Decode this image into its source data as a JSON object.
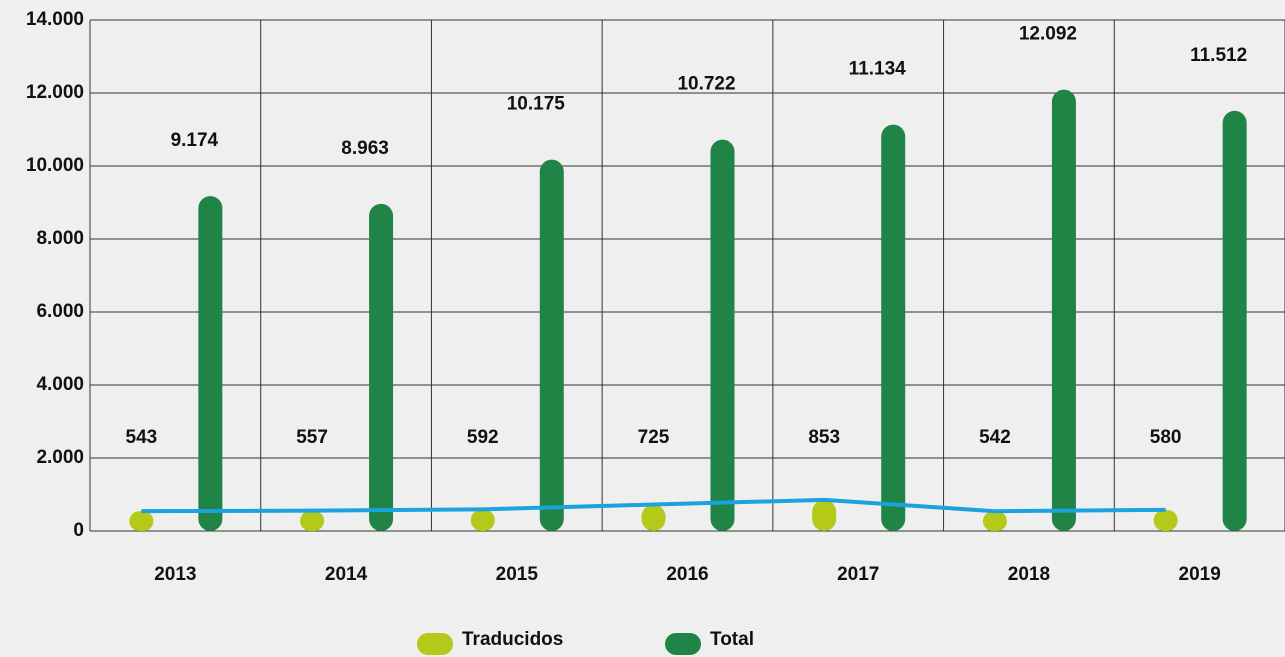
{
  "chart_data": {
    "type": "bar",
    "categories": [
      "2013",
      "2014",
      "2015",
      "2016",
      "2017",
      "2018",
      "2019"
    ],
    "series": [
      {
        "name": "Traducidos",
        "color": "#b5c918",
        "values": [
          543,
          557,
          592,
          725,
          853,
          542,
          580
        ]
      },
      {
        "name": "Total",
        "color": "#1f8445",
        "values": [
          9174,
          8963,
          10175,
          10722,
          11134,
          12092,
          11512
        ],
        "value_labels": [
          "9.174",
          "8.963",
          "10.175",
          "10.722",
          "11.134",
          "12.092",
          "11.512"
        ]
      }
    ],
    "line_color": "#1aa3e0",
    "ylim": [
      0,
      14000
    ],
    "yticks": [
      0,
      {
        "value": 2000,
        "label": "2.000"
      },
      {
        "value": 4000,
        "label": "4.000"
      },
      {
        "value": 6000,
        "label": "6.000"
      },
      {
        "value": 8000,
        "label": "8.000"
      },
      {
        "value": 10000,
        "label": "10.000"
      },
      {
        "value": 12000,
        "label": "12.000"
      },
      {
        "value": 14000,
        "label": "14.000"
      }
    ],
    "grid": true
  }
}
